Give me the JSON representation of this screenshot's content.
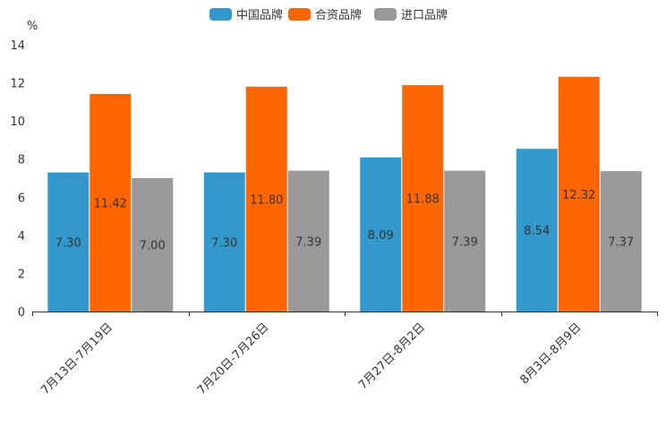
{
  "chart_data": {
    "type": "bar",
    "title": "",
    "ylabel": "%",
    "xlabel": "",
    "ylim": [
      0,
      14
    ],
    "yticks": [
      "0",
      "2",
      "4",
      "6",
      "8",
      "10",
      "12",
      "14"
    ],
    "categories": [
      "7月13日-7月19日",
      "7月20日-7月26日",
      "7月27日-8月2日",
      "8月3日-8月9日"
    ],
    "series": [
      {
        "name": "中国品牌",
        "color": "#3399cc",
        "values": [
          7.3,
          7.3,
          8.09,
          8.54
        ],
        "labels": [
          "7.30",
          "7.30",
          "8.09",
          "8.54"
        ]
      },
      {
        "name": "合资品牌",
        "color": "#ff6600",
        "values": [
          11.42,
          11.8,
          11.88,
          12.32
        ],
        "labels": [
          "11.42",
          "11.80",
          "11.88",
          "12.32"
        ]
      },
      {
        "name": "进口品牌",
        "color": "#999999",
        "values": [
          7.0,
          7.39,
          7.39,
          7.37
        ],
        "labels": [
          "7.00",
          "7.39",
          "7.39",
          "7.37"
        ]
      }
    ],
    "legend_position": "top-center",
    "grid": false
  }
}
